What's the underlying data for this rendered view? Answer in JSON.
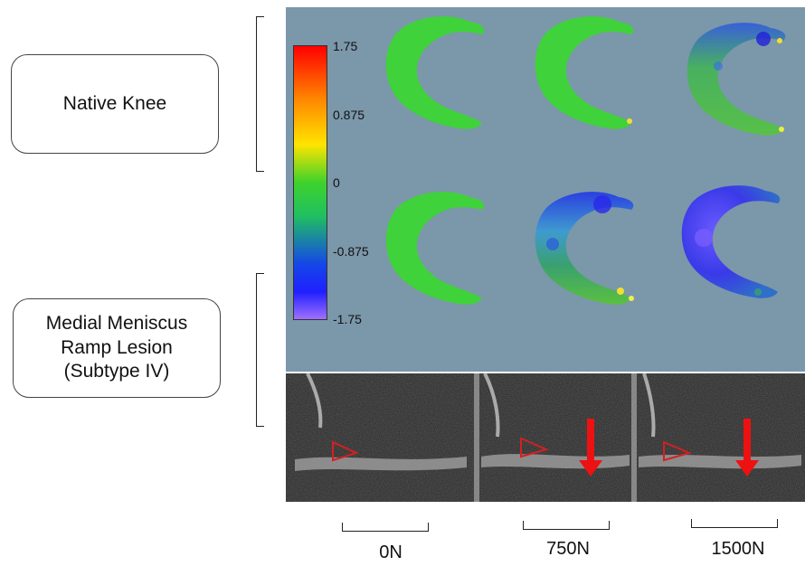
{
  "rows": {
    "native": {
      "label_lines": [
        "Native Knee"
      ]
    },
    "ramp": {
      "label_lines": [
        "Medial Meniscus",
        "Ramp Lesion",
        "(Subtype IV)"
      ]
    }
  },
  "colorbar": {
    "ticks": [
      "1.75",
      "0.875",
      "0",
      "-0.875",
      "-1.75"
    ],
    "colors": [
      "#ff0000",
      "#ff8a00",
      "#ffe400",
      "#3ed22c",
      "#1446e8",
      "#a070ff"
    ]
  },
  "loads": [
    "0N",
    "750N",
    "1500N"
  ],
  "panel_colors": {
    "background": "#7b97aa",
    "green": "#3fd23a",
    "blue": "#3a3ae8",
    "arrow": "#ee1111"
  }
}
